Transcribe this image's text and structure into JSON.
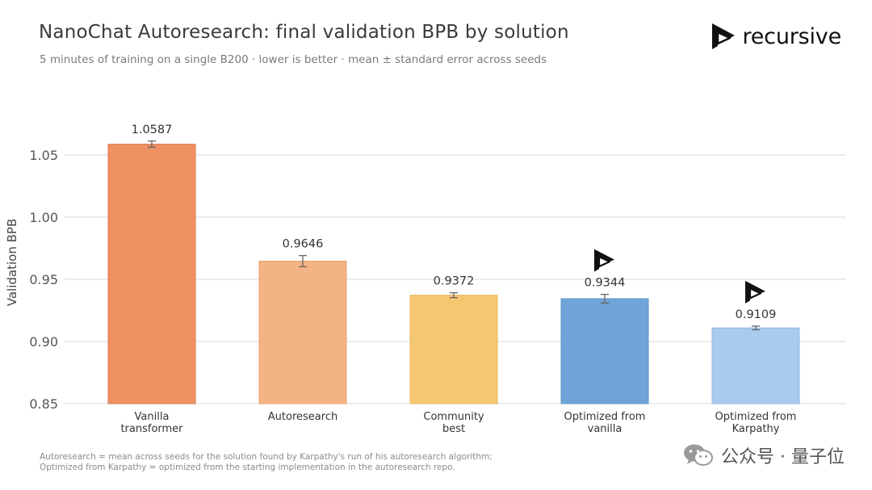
{
  "header": {
    "title": "NanoChat Autoresearch: final validation BPB by solution",
    "subtitle": "5 minutes of training on a single B200 · lower is better · mean ± standard error across seeds"
  },
  "brand": {
    "name": "recursive",
    "logo_icon": "recursive-logo-icon"
  },
  "chart_data": {
    "type": "bar",
    "title": "NanoChat Autoresearch: final validation BPB by solution",
    "subtitle": "5 minutes of training on a single B200 · lower is better · mean ± standard error across seeds",
    "ylabel": "Validation BPB",
    "xlabel": "",
    "ylim": [
      0.85,
      1.07
    ],
    "yticks": [
      0.85,
      0.9,
      0.95,
      1.0,
      1.05
    ],
    "ytick_labels": [
      "0.85",
      "0.90",
      "0.95",
      "1.00",
      "1.05"
    ],
    "grid": "horizontal",
    "categories": [
      [
        "Vanilla",
        "transformer"
      ],
      [
        "Autoresearch"
      ],
      [
        "Community",
        "best"
      ],
      [
        "Optimized from",
        "vanilla"
      ],
      [
        "Optimized from",
        "Karpathy"
      ]
    ],
    "values": [
      1.0587,
      0.9646,
      0.9372,
      0.9344,
      0.9109
    ],
    "value_labels": [
      "1.0587",
      "0.9646",
      "0.9372",
      "0.9344",
      "0.9109"
    ],
    "errors": [
      0.0025,
      0.0045,
      0.002,
      0.0035,
      0.0015
    ],
    "colors": [
      "#ef9163",
      "#f4b383",
      "#f6c771",
      "#6fa5d9",
      "#a9cbee"
    ],
    "edge_colors": [
      "#d97d52",
      "#e8a26f",
      "#e6b45c",
      "#5e95c8",
      "#94b9e0"
    ],
    "marker_icon": [
      false,
      false,
      false,
      true,
      true
    ]
  },
  "footnote": {
    "line1": "Autoresearch = mean across seeds for the solution found by Karpathy's run of his autoresearch algorithm;",
    "line2": "Optimized from Karpathy = optimized from the starting implementation in the autoresearch repo."
  },
  "watermark": {
    "text": "公众号 · 量子位",
    "icon": "wechat-icon"
  },
  "colors": {
    "axis_text": "#555555",
    "grid": "#d9d9d9",
    "error_bar": "#666666"
  }
}
